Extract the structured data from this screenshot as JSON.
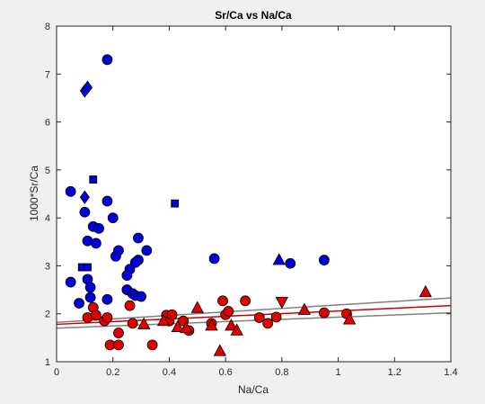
{
  "chart_data": {
    "type": "scatter",
    "title": "Sr/Ca vs Na/Ca",
    "xlabel": "Na/Ca",
    "ylabel": "1000*Sr/Ca",
    "xlim": [
      0,
      1.4
    ],
    "ylim": [
      1,
      8
    ],
    "xticks": [
      "0",
      "0.2",
      "0.4",
      "0.6",
      "0.8",
      "1",
      "1.2",
      "1.4"
    ],
    "yticks": [
      "1",
      "2",
      "3",
      "4",
      "5",
      "6",
      "7",
      "8"
    ],
    "grid": false,
    "legend": "none",
    "colors": {
      "blue_group": "#0000dd",
      "red_group": "#e00000",
      "fit_line": "#cc0000",
      "band_line": "#808080"
    },
    "series": [
      {
        "group": "blue",
        "marker": "circle",
        "points": [
          [
            0.18,
            7.3
          ],
          [
            0.05,
            4.55
          ],
          [
            0.18,
            4.35
          ],
          [
            0.1,
            4.12
          ],
          [
            0.2,
            4.0
          ],
          [
            0.13,
            3.82
          ],
          [
            0.15,
            3.78
          ],
          [
            0.11,
            3.52
          ],
          [
            0.14,
            3.47
          ],
          [
            0.29,
            3.58
          ],
          [
            0.22,
            3.32
          ],
          [
            0.32,
            3.32
          ],
          [
            0.21,
            3.2
          ],
          [
            0.29,
            3.12
          ],
          [
            0.28,
            3.07
          ],
          [
            0.56,
            3.15
          ],
          [
            0.83,
            3.05
          ],
          [
            0.95,
            3.12
          ],
          [
            0.26,
            2.93
          ],
          [
            0.25,
            2.8
          ],
          [
            0.05,
            2.66
          ],
          [
            0.11,
            2.72
          ],
          [
            0.12,
            2.55
          ],
          [
            0.25,
            2.5
          ],
          [
            0.27,
            2.42
          ],
          [
            0.28,
            2.38
          ],
          [
            0.3,
            2.36
          ],
          [
            0.12,
            2.34
          ],
          [
            0.08,
            2.22
          ],
          [
            0.18,
            2.3
          ]
        ]
      },
      {
        "group": "blue",
        "marker": "diamond",
        "points": [
          [
            0.1,
            6.65
          ],
          [
            0.11,
            6.72
          ],
          [
            0.1,
            4.43
          ]
        ]
      },
      {
        "group": "blue",
        "marker": "square",
        "points": [
          [
            0.13,
            4.8
          ],
          [
            0.42,
            4.3
          ],
          [
            0.09,
            2.97
          ],
          [
            0.11,
            2.97
          ]
        ]
      },
      {
        "group": "blue",
        "marker": "triangle-up",
        "points": [
          [
            0.79,
            3.12
          ]
        ]
      },
      {
        "group": "red",
        "marker": "circle",
        "points": [
          [
            0.11,
            1.92
          ],
          [
            0.13,
            2.13
          ],
          [
            0.14,
            1.97
          ],
          [
            0.17,
            1.85
          ],
          [
            0.18,
            1.92
          ],
          [
            0.19,
            1.35
          ],
          [
            0.22,
            1.35
          ],
          [
            0.22,
            1.6
          ],
          [
            0.26,
            2.17
          ],
          [
            0.27,
            1.8
          ],
          [
            0.34,
            1.35
          ],
          [
            0.39,
            1.97
          ],
          [
            0.4,
            1.85
          ],
          [
            0.41,
            1.98
          ],
          [
            0.45,
            1.85
          ],
          [
            0.47,
            1.65
          ],
          [
            0.55,
            1.8
          ],
          [
            0.59,
            2.27
          ],
          [
            0.6,
            1.98
          ],
          [
            0.61,
            2.05
          ],
          [
            0.67,
            2.27
          ],
          [
            0.72,
            1.92
          ],
          [
            0.75,
            1.8
          ],
          [
            0.78,
            1.93
          ],
          [
            0.95,
            2.02
          ],
          [
            1.03,
            2.0
          ]
        ]
      },
      {
        "group": "red",
        "marker": "triangle-up",
        "points": [
          [
            0.31,
            1.78
          ],
          [
            0.38,
            1.85
          ],
          [
            0.43,
            1.72
          ],
          [
            0.46,
            1.7
          ],
          [
            0.5,
            2.12
          ],
          [
            0.55,
            1.75
          ],
          [
            0.58,
            1.22
          ],
          [
            0.62,
            1.75
          ],
          [
            0.64,
            1.65
          ],
          [
            0.88,
            2.08
          ],
          [
            1.04,
            1.88
          ],
          [
            1.31,
            2.45
          ]
        ]
      },
      {
        "group": "red",
        "marker": "triangle-down",
        "points": [
          [
            0.8,
            2.25
          ]
        ]
      }
    ],
    "fit_line": {
      "x": [
        0,
        1.4
      ],
      "y": [
        1.78,
        2.17
      ]
    },
    "confidence_band": [
      {
        "x": [
          0,
          1.4
        ],
        "y": [
          1.7,
          2.02
        ]
      },
      {
        "x": [
          0,
          1.4
        ],
        "y": [
          1.82,
          2.33
        ]
      }
    ]
  }
}
